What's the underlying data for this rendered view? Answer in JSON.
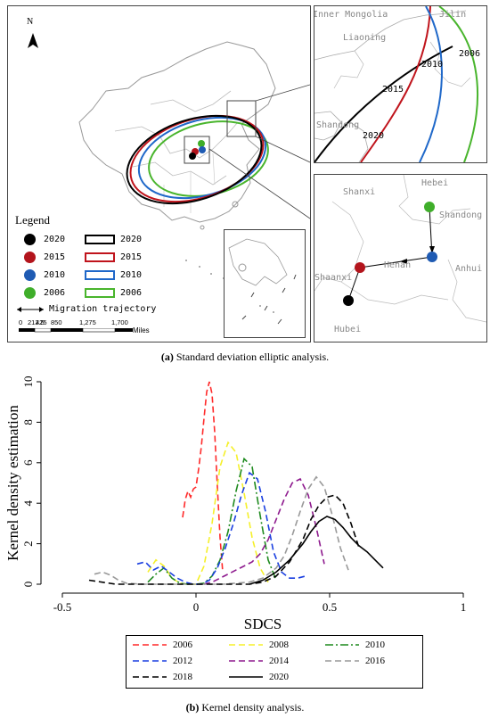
{
  "figure_a": {
    "north": "N",
    "legend_title": "Legend",
    "dots": [
      {
        "label": "2020",
        "color": "#000000"
      },
      {
        "label": "2015",
        "color": "#b3141c"
      },
      {
        "label": "2010",
        "color": "#1f5bb3"
      },
      {
        "label": "2006",
        "color": "#3fae2a"
      }
    ],
    "rings": [
      {
        "label": "2020",
        "color": "#000000"
      },
      {
        "label": "2015",
        "color": "#c0141c"
      },
      {
        "label": "2010",
        "color": "#1f68c9"
      },
      {
        "label": "2006",
        "color": "#49b52d"
      }
    ],
    "migration_label": "Migration trajectory",
    "scale_ticks": [
      "0",
      "212.5",
      "425",
      "850",
      "1,275",
      "1,700"
    ],
    "scale_unit": "Miles",
    "inset_top": {
      "places": [
        "Inner Mongolia",
        "Jilin",
        "Liaoning",
        "Shandong"
      ],
      "years": [
        "2006",
        "2010",
        "2015",
        "2020"
      ]
    },
    "inset_bottom": {
      "places": [
        "Shanxi",
        "Hebei",
        "Shandong",
        "Henan",
        "Shaanxi",
        "Anhui",
        "Hubei"
      ]
    },
    "caption_prefix": "(a)",
    "caption_text": " Standard deviation elliptic analysis."
  },
  "chart_data": {
    "type": "line",
    "title": "",
    "xlabel": "SDCS",
    "ylabel": "Kernel density estimation",
    "xlim": [
      -0.5,
      1
    ],
    "ylim": [
      0,
      10
    ],
    "xticks": [
      "-0.5",
      "0",
      "0.5",
      "1"
    ],
    "yticks": [
      "0",
      "2",
      "4",
      "6",
      "8",
      "10"
    ],
    "series": [
      {
        "name": "2006",
        "color": "#ff2a2a",
        "dash": "7,4",
        "x": [
          -0.05,
          -0.04,
          -0.03,
          -0.02,
          -0.01,
          0,
          0.01,
          0.02,
          0.03,
          0.04,
          0.05,
          0.06,
          0.07,
          0.08,
          0.09,
          0.1
        ],
        "y": [
          3.3,
          4.2,
          4.6,
          4.3,
          4.7,
          4.8,
          5.7,
          6.8,
          8.2,
          9.5,
          10.0,
          9.4,
          7.5,
          4.8,
          2.3,
          0.6
        ]
      },
      {
        "name": "2008",
        "color": "#f5f02a",
        "dash": "7,4",
        "x": [
          -0.18,
          -0.15,
          -0.12,
          -0.09,
          -0.06,
          -0.03,
          0,
          0.03,
          0.06,
          0.09,
          0.12,
          0.15,
          0.18,
          0.21,
          0.24,
          0.27
        ],
        "y": [
          0.6,
          1.2,
          0.9,
          0.3,
          0.05,
          0.0,
          0.0,
          0.9,
          3.0,
          5.8,
          7.0,
          6.5,
          4.5,
          2.3,
          0.8,
          0.1
        ]
      },
      {
        "name": "2010",
        "color": "#1e8a1e",
        "dash": "9,3,2,3",
        "x": [
          -0.18,
          -0.15,
          -0.12,
          -0.09,
          -0.06,
          -0.03,
          0,
          0.03,
          0.06,
          0.09,
          0.12,
          0.15,
          0.18,
          0.21,
          0.24,
          0.27,
          0.3
        ],
        "y": [
          0.1,
          0.5,
          0.8,
          0.3,
          0.05,
          0,
          0,
          0.05,
          0.4,
          1.2,
          2.6,
          4.6,
          6.2,
          5.8,
          3.4,
          1.2,
          0.2
        ]
      },
      {
        "name": "2012",
        "color": "#1a3fe0",
        "dash": "7,4",
        "x": [
          -0.22,
          -0.19,
          -0.16,
          -0.13,
          -0.1,
          -0.07,
          -0.04,
          -0.01,
          0.02,
          0.05,
          0.08,
          0.11,
          0.14,
          0.17,
          0.2,
          0.23,
          0.26,
          0.29,
          0.32,
          0.35,
          0.38,
          0.41
        ],
        "y": [
          1.0,
          1.1,
          0.7,
          0.9,
          0.6,
          0.3,
          0.1,
          0.0,
          0.0,
          0.2,
          0.8,
          1.8,
          3.0,
          4.4,
          5.5,
          5.2,
          3.6,
          1.6,
          0.6,
          0.3,
          0.3,
          0.4
        ]
      },
      {
        "name": "2014",
        "color": "#8e1a8e",
        "dash": "7,4",
        "x": [
          0.03,
          0.06,
          0.09,
          0.12,
          0.15,
          0.18,
          0.21,
          0.24,
          0.27,
          0.3,
          0.33,
          0.36,
          0.39,
          0.42,
          0.45,
          0.48
        ],
        "y": [
          0.0,
          0.1,
          0.3,
          0.5,
          0.7,
          0.9,
          1.1,
          1.5,
          2.2,
          3.2,
          4.2,
          5.0,
          5.2,
          4.4,
          2.8,
          1.0
        ]
      },
      {
        "name": "2016",
        "color": "#999999",
        "dash": "7,4",
        "x": [
          -0.38,
          -0.35,
          -0.32,
          -0.29,
          -0.26,
          -0.2,
          -0.1,
          0,
          0.1,
          0.2,
          0.25,
          0.3,
          0.33,
          0.36,
          0.39,
          0.42,
          0.45,
          0.48,
          0.51,
          0.54,
          0.57
        ],
        "y": [
          0.5,
          0.6,
          0.45,
          0.2,
          0.05,
          0,
          0,
          0,
          0,
          0.1,
          0.3,
          0.8,
          1.4,
          2.4,
          3.6,
          4.7,
          5.3,
          4.8,
          3.4,
          1.8,
          0.7
        ]
      },
      {
        "name": "2018",
        "color": "#000000",
        "dash": "7,4",
        "x": [
          -0.4,
          -0.3,
          -0.2,
          -0.1,
          0,
          0.1,
          0.2,
          0.25,
          0.3,
          0.35,
          0.4,
          0.43,
          0.46,
          0.49,
          0.52,
          0.55,
          0.58,
          0.61
        ],
        "y": [
          0.2,
          0.0,
          0.0,
          0.0,
          0.0,
          0.0,
          0.0,
          0.1,
          0.4,
          1.1,
          2.2,
          3.2,
          3.9,
          4.3,
          4.4,
          4.0,
          3.0,
          1.8
        ]
      },
      {
        "name": "2020",
        "color": "#000000",
        "dash": "",
        "x": [
          0.2,
          0.25,
          0.3,
          0.35,
          0.4,
          0.43,
          0.46,
          0.49,
          0.52,
          0.55,
          0.58,
          0.61,
          0.64,
          0.67,
          0.7
        ],
        "y": [
          0.0,
          0.2,
          0.6,
          1.2,
          2.0,
          2.6,
          3.1,
          3.35,
          3.2,
          2.8,
          2.3,
          1.9,
          1.6,
          1.2,
          0.8
        ]
      }
    ]
  },
  "figure_b": {
    "caption_prefix": "(b)",
    "caption_text": " Kernel density analysis."
  }
}
